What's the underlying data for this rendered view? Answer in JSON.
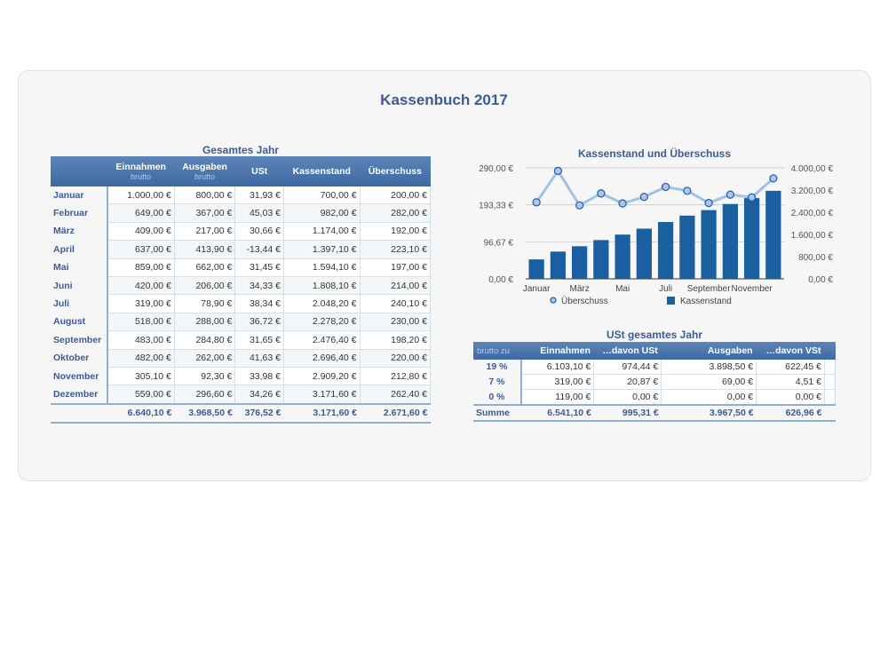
{
  "title": "Kassenbuch 2017",
  "table1": {
    "caption": "Gesamtes Jahr",
    "headers": [
      {
        "label": "Einnahmen",
        "sub": "brutto"
      },
      {
        "label": "Ausgaben",
        "sub": "brutto"
      },
      {
        "label": "USt",
        "sub": ""
      },
      {
        "label": "Kassenstand",
        "sub": ""
      },
      {
        "label": "Überschuss",
        "sub": ""
      }
    ],
    "rows": [
      [
        "Januar",
        "1.000,00 €",
        "800,00 €",
        "31,93 €",
        "700,00 €",
        "200,00 €"
      ],
      [
        "Februar",
        "649,00 €",
        "367,00 €",
        "45,03 €",
        "982,00 €",
        "282,00 €"
      ],
      [
        "März",
        "409,00 €",
        "217,00 €",
        "30,66 €",
        "1.174,00 €",
        "192,00 €"
      ],
      [
        "April",
        "637,00 €",
        "413,90 €",
        "-13,44 €",
        "1.397,10 €",
        "223,10 €"
      ],
      [
        "Mai",
        "859,00 €",
        "662,00 €",
        "31,45 €",
        "1.594,10 €",
        "197,00 €"
      ],
      [
        "Juni",
        "420,00 €",
        "206,00 €",
        "34,33 €",
        "1.808,10 €",
        "214,00 €"
      ],
      [
        "Juli",
        "319,00 €",
        "78,90 €",
        "38,34 €",
        "2.048,20 €",
        "240,10 €"
      ],
      [
        "August",
        "518,00 €",
        "288,00 €",
        "36,72 €",
        "2.278,20 €",
        "230,00 €"
      ],
      [
        "September",
        "483,00 €",
        "284,80 €",
        "31,65 €",
        "2.476,40 €",
        "198,20 €"
      ],
      [
        "Oktober",
        "482,00 €",
        "262,00 €",
        "41,63 €",
        "2.696,40 €",
        "220,00 €"
      ],
      [
        "November",
        "305,10 €",
        "92,30 €",
        "33,98 €",
        "2.909,20 €",
        "212,80 €"
      ],
      [
        "Dezember",
        "559,00 €",
        "296,60 €",
        "34,26 €",
        "3.171,60 €",
        "262,40 €"
      ]
    ],
    "total": [
      "",
      "6.640,10 €",
      "3.968,50 €",
      "376,52 €",
      "3.171,60 €",
      "2.671,60 €"
    ]
  },
  "table2": {
    "caption": "USt gesamtes Jahr",
    "headers": [
      "brutto zu",
      "Einnahmen",
      "…davon USt",
      "Ausgaben",
      "…davon VSt"
    ],
    "rows": [
      [
        "19 %",
        "6.103,10 €",
        "974,44 €",
        "3.898,50 €",
        "622,45 €"
      ],
      [
        "7 %",
        "319,00 €",
        "20,87 €",
        "69,00 €",
        "4,51 €"
      ],
      [
        "0 %",
        "119,00 €",
        "0,00 €",
        "0,00 €",
        "0,00 €"
      ]
    ],
    "total": [
      "Summe",
      "6.541,10 €",
      "995,31 €",
      "3.967,50 €",
      "626,96 €"
    ]
  },
  "chart_data": {
    "type": "bar+line",
    "title": "Kassenstand und Überschuss",
    "categories": [
      "Januar",
      "Februar",
      "März",
      "April",
      "Mai",
      "Juni",
      "Juli",
      "August",
      "September",
      "Oktober",
      "November",
      "Dezember"
    ],
    "xtick_labels": [
      "Januar",
      "",
      "März",
      "",
      "Mai",
      "",
      "Juli",
      "",
      "September",
      "",
      "November",
      ""
    ],
    "series": [
      {
        "name": "Überschuss",
        "type": "line",
        "axis": "left",
        "values": [
          200,
          282,
          192,
          223.1,
          197,
          214,
          240.1,
          230,
          198.2,
          220,
          212.8,
          262.4
        ],
        "color": "#9ec3e6"
      },
      {
        "name": "Kassenstand",
        "type": "bar",
        "axis": "right",
        "values": [
          700,
          982,
          1174,
          1397.1,
          1594.1,
          1808.1,
          2048.2,
          2278.2,
          2476.4,
          2696.4,
          2909.2,
          3171.6
        ],
        "color": "#1a5fa0"
      }
    ],
    "left_axis": {
      "range": [
        0,
        290
      ],
      "ticks": [
        "0,00 €",
        "96,67 €",
        "193,33 €",
        "290,00 €"
      ]
    },
    "right_axis": {
      "range": [
        0,
        4000
      ],
      "ticks": [
        "0,00 €",
        "800,00 €",
        "1.600,00 €",
        "2.400,00 €",
        "3.200,00 €",
        "4.000,00 €"
      ]
    },
    "legend": "bottom"
  }
}
